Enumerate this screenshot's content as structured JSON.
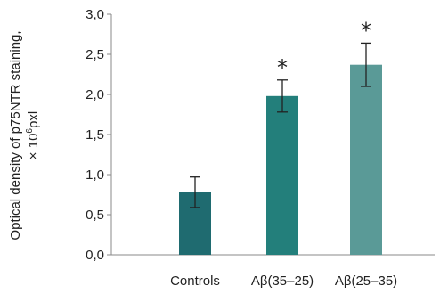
{
  "chart_data": {
    "type": "bar",
    "categories": [
      "Controls",
      "Aβ(35–25)",
      "Aβ(25–35)"
    ],
    "values": [
      0.78,
      1.98,
      2.37
    ],
    "error": [
      0.19,
      0.2,
      0.27
    ],
    "significance": [
      "",
      "*",
      "*"
    ],
    "ylabel_line1": "Optical density of  p75NTR staining,",
    "ylabel_line2_prefix": "× 10",
    "ylabel_line2_exp": "6",
    "ylabel_line2_suffix": "pxl",
    "ylim": [
      0,
      3
    ],
    "yticks": [
      "0,0",
      "0,5",
      "1,0",
      "1,5",
      "2,0",
      "2,5",
      "3,0"
    ],
    "grid": false,
    "colors": [
      "#1f6b70",
      "#237f7b",
      "#5a9a97"
    ]
  }
}
